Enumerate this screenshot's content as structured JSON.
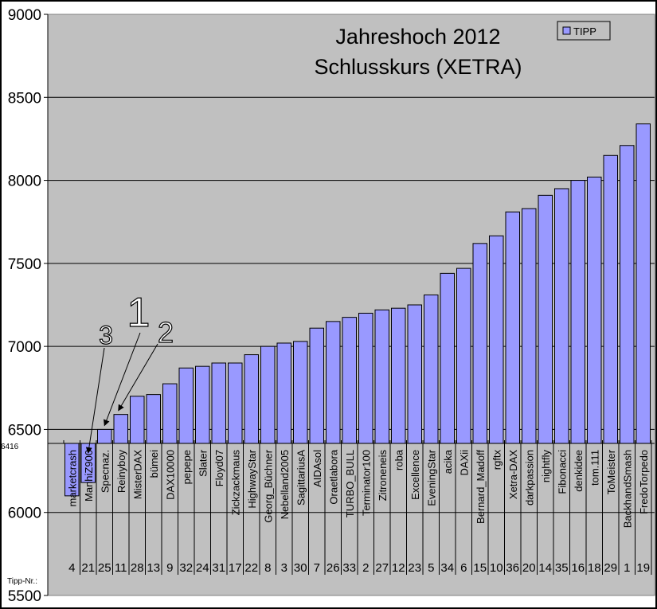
{
  "chart_data": {
    "type": "bar",
    "title": [
      "Jahreshoch 2012",
      "Schlusskurs (XETRA)"
    ],
    "xlabel": "",
    "ylabel": "",
    "ylim": [
      5500,
      9000
    ],
    "yticks": [
      5500,
      6000,
      6500,
      7000,
      7500,
      8000,
      8500,
      9000
    ],
    "baseline": 6416,
    "baseline_label": "6416",
    "row_label": "Tipp-Nr.:",
    "grid": true,
    "legend": {
      "position": "top-right",
      "entries": [
        "TIPP"
      ]
    },
    "bar_color": "#9999ff",
    "plot_bg": "#c0c0c0",
    "categories": [
      "marketcrash",
      "ManhiZ900",
      "Specnaz.",
      "Reinyboy",
      "MisterDAX",
      "bümei",
      "DAX10000",
      "pepepe",
      "Slater",
      "Floyd07",
      "Zickzackmaus",
      "HighwayStar",
      "Georg_Büchner",
      "Nebelland2005",
      "SagittariusA",
      "AIDAsol",
      "Oraetlabora",
      "TURBO_BULL",
      "Terminator100",
      "Zitroneneis",
      "roba",
      "Excellence",
      "EveningStar",
      "acika",
      "DAXii",
      "Bernard_Madoff",
      "rgftx",
      "Xetra-DAX",
      "darkpassion",
      "nightfly",
      "Fibonacci",
      "denkidee",
      "tom.111",
      "ToMeister",
      "BackhandSmash",
      "FredoTorpedo"
    ],
    "tipp_nr": [
      "4",
      "21",
      "25",
      "11",
      "28",
      "13",
      "9",
      "32",
      "24",
      "31",
      "17",
      "22",
      "8",
      "3",
      "30",
      "7",
      "26",
      "33",
      "2",
      "27",
      "12",
      "23",
      "5",
      "34",
      "6",
      "15",
      "10",
      "36",
      "20",
      "14",
      "35",
      "16",
      "18",
      "29",
      "1",
      "19"
    ],
    "series": [
      {
        "name": "TIPP",
        "values": [
          6100,
          6180,
          6500,
          6590,
          6700,
          6710,
          6775,
          6870,
          6880,
          6900,
          6900,
          6950,
          7000,
          7020,
          7030,
          7110,
          7150,
          7175,
          7200,
          7220,
          7230,
          7250,
          7310,
          7440,
          7470,
          7620,
          7666,
          7810,
          7830,
          7910,
          7950,
          8000,
          8020,
          8150,
          8210,
          8340
        ]
      }
    ],
    "annotations": [
      {
        "text": "1",
        "target": "Specnaz."
      },
      {
        "text": "2",
        "target": "Reinyboy"
      },
      {
        "text": "3",
        "target": "ManhiZ900"
      }
    ]
  }
}
